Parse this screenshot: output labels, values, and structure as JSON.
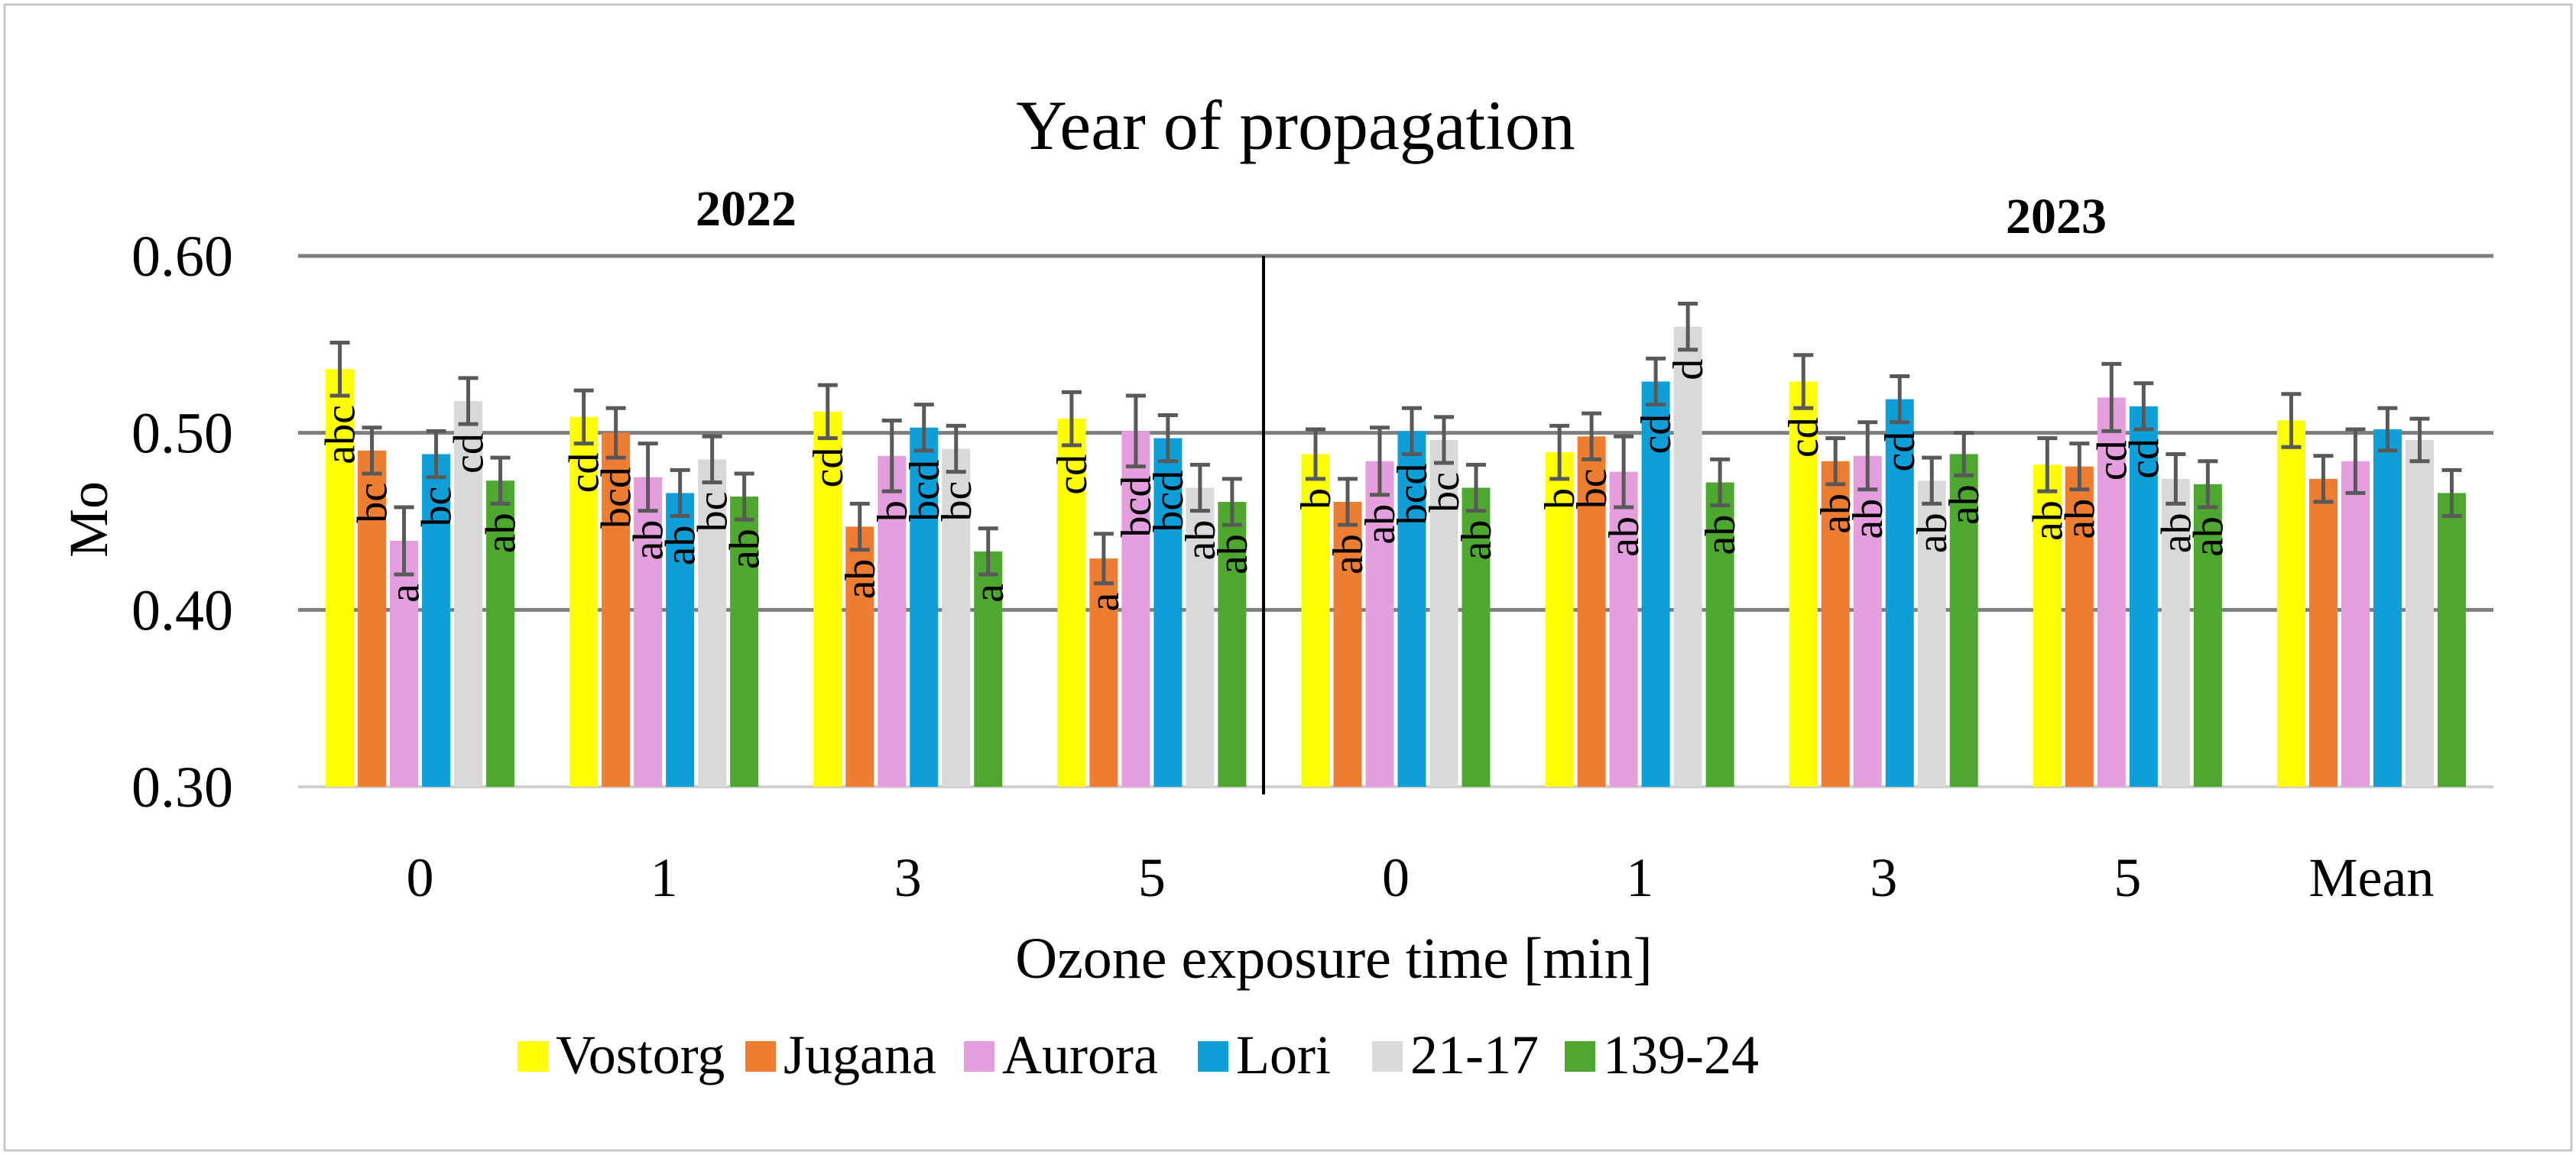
{
  "chart_data": {
    "type": "bar",
    "title": "Year of propagation",
    "group_labels": [
      "2022",
      "2023"
    ],
    "xlabel": "Ozone exposure time [min]",
    "ylabel": "Mo",
    "ylim": [
      0.3,
      0.6
    ],
    "yticks": [
      0.3,
      0.4,
      0.5,
      0.6
    ],
    "ytick_labels": [
      "0.30",
      "0.40",
      "0.50",
      "0.60"
    ],
    "grid": true,
    "legend_position": "bottom",
    "categories": [
      "0",
      "1",
      "3",
      "5",
      "0",
      "1",
      "3",
      "5",
      "Mean"
    ],
    "series": [
      {
        "name": "Vostorg",
        "color": "#FFFF00",
        "values": [
          0.536,
          0.509,
          0.512,
          0.508,
          0.488,
          0.489,
          0.529,
          0.482,
          0.507
        ],
        "errors": [
          0.015,
          0.015,
          0.015,
          0.015,
          0.014,
          0.015,
          0.015,
          0.015,
          0.015
        ],
        "letters": [
          "abc",
          "cd",
          "cd",
          "cd",
          "b",
          "b",
          "cd",
          "ab",
          ""
        ]
      },
      {
        "name": "Jugana",
        "color": "#ED7D31",
        "values": [
          0.49,
          0.5,
          0.447,
          0.429,
          0.461,
          0.498,
          0.484,
          0.481,
          0.474
        ],
        "errors": [
          0.013,
          0.014,
          0.013,
          0.014,
          0.013,
          0.013,
          0.013,
          0.013,
          0.013
        ],
        "letters": [
          "bc",
          "bcd",
          "ab",
          "a",
          "ab",
          "bc",
          "ab",
          "ab",
          ""
        ]
      },
      {
        "name": "Aurora",
        "color": "#E49EDD",
        "values": [
          0.439,
          0.475,
          0.487,
          0.501,
          0.484,
          0.478,
          0.487,
          0.52,
          0.484
        ],
        "errors": [
          0.019,
          0.019,
          0.02,
          0.02,
          0.019,
          0.02,
          0.019,
          0.019,
          0.018
        ],
        "letters": [
          "a",
          "ab",
          "b",
          "bcd",
          "ab",
          "ab",
          "ab",
          "cd",
          ""
        ]
      },
      {
        "name": "Lori",
        "color": "#0E9FD8",
        "values": [
          0.488,
          0.466,
          0.503,
          0.497,
          0.501,
          0.529,
          0.519,
          0.515,
          0.502
        ],
        "errors": [
          0.013,
          0.013,
          0.013,
          0.013,
          0.013,
          0.013,
          0.013,
          0.013,
          0.012
        ],
        "letters": [
          "bc",
          "ab",
          "bcd",
          "bcd",
          "bcd",
          "cd",
          "cd",
          "cd",
          ""
        ]
      },
      {
        "name": "21-17",
        "color": "#D9D9D9",
        "values": [
          0.518,
          0.485,
          0.491,
          0.469,
          0.496,
          0.56,
          0.473,
          0.474,
          0.496
        ],
        "errors": [
          0.013,
          0.013,
          0.013,
          0.013,
          0.013,
          0.013,
          0.013,
          0.014,
          0.012
        ],
        "letters": [
          "cd",
          "bc",
          "bc",
          "ab",
          "bc",
          "d",
          "ab",
          "ab",
          ""
        ]
      },
      {
        "name": "139-24",
        "color": "#4EA72E",
        "values": [
          0.473,
          0.464,
          0.433,
          0.461,
          0.469,
          0.472,
          0.488,
          0.471,
          0.466
        ],
        "errors": [
          0.013,
          0.013,
          0.013,
          0.013,
          0.013,
          0.013,
          0.012,
          0.013,
          0.013
        ],
        "letters": [
          "ab",
          "ab",
          "a",
          "ab",
          "ab",
          "ab",
          "ab",
          "ab",
          ""
        ]
      }
    ]
  }
}
